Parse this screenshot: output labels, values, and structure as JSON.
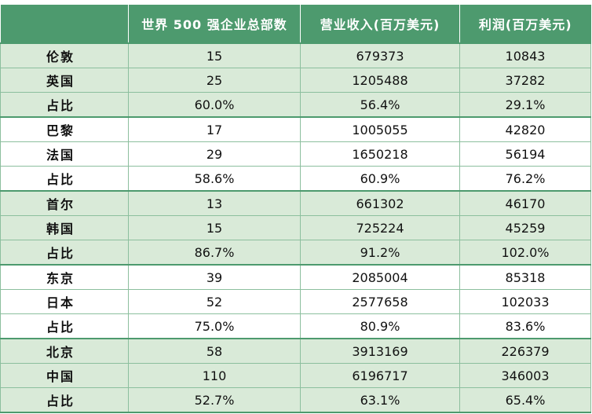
{
  "chart_data": {
    "type": "table",
    "columns": [
      "",
      "世界 500 强企业总部数",
      "营业收入(百万美元)",
      "利润(百万美元)"
    ],
    "rows": [
      {
        "label": "伦敦",
        "values": [
          "15",
          "679373",
          "10843"
        ],
        "shaded": true,
        "group_start": true
      },
      {
        "label": "英国",
        "values": [
          "25",
          "1205488",
          "37282"
        ],
        "shaded": true,
        "group_start": false
      },
      {
        "label": "占比",
        "values": [
          "60.0%",
          "56.4%",
          "29.1%"
        ],
        "shaded": true,
        "group_start": false
      },
      {
        "label": "巴黎",
        "values": [
          "17",
          "1005055",
          "42820"
        ],
        "shaded": false,
        "group_start": true
      },
      {
        "label": "法国",
        "values": [
          "29",
          "1650218",
          "56194"
        ],
        "shaded": false,
        "group_start": false
      },
      {
        "label": "占比",
        "values": [
          "58.6%",
          "60.9%",
          "76.2%"
        ],
        "shaded": false,
        "group_start": false
      },
      {
        "label": "首尔",
        "values": [
          "13",
          "661302",
          "46170"
        ],
        "shaded": true,
        "group_start": true
      },
      {
        "label": "韩国",
        "values": [
          "15",
          "725224",
          "45259"
        ],
        "shaded": true,
        "group_start": false
      },
      {
        "label": "占比",
        "values": [
          "86.7%",
          "91.2%",
          "102.0%"
        ],
        "shaded": true,
        "group_start": false
      },
      {
        "label": "东京",
        "values": [
          "39",
          "2085004",
          "85318"
        ],
        "shaded": false,
        "group_start": true
      },
      {
        "label": "日本",
        "values": [
          "52",
          "2577658",
          "102033"
        ],
        "shaded": false,
        "group_start": false
      },
      {
        "label": "占比",
        "values": [
          "75.0%",
          "80.9%",
          "83.6%"
        ],
        "shaded": false,
        "group_start": false
      },
      {
        "label": "北京",
        "values": [
          "58",
          "3913169",
          "226379"
        ],
        "shaded": true,
        "group_start": true
      },
      {
        "label": "中国",
        "values": [
          "110",
          "6196717",
          "346003"
        ],
        "shaded": true,
        "group_start": false
      },
      {
        "label": "占比",
        "values": [
          "52.7%",
          "63.1%",
          "65.4%"
        ],
        "shaded": true,
        "group_start": false
      }
    ],
    "colors": {
      "header": "#4d9a6e",
      "shaded_row": "#d9ead8",
      "plain_row": "#ffffff"
    }
  }
}
